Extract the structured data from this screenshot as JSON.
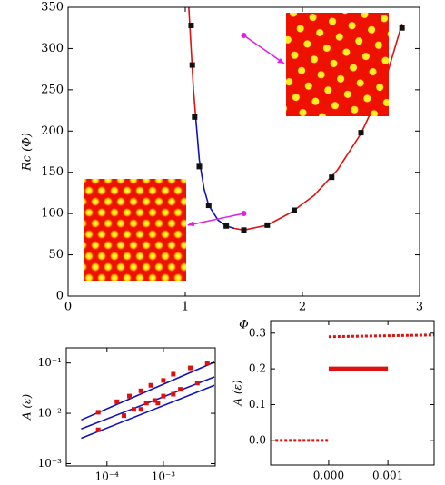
{
  "chart_data": [
    {
      "type": "line",
      "xlabel": "Φ",
      "ylabel": "Rc (Φ)",
      "xlim": [
        0,
        3
      ],
      "ylim": [
        0,
        350
      ],
      "xticks": [
        0,
        1,
        2,
        3
      ],
      "yticks": [
        0,
        50,
        100,
        150,
        200,
        250,
        300,
        350
      ],
      "series": [
        {
          "color": "#dd1111",
          "style": "solid",
          "x": [
            1.03,
            1.05,
            1.07,
            1.09
          ],
          "values": [
            350,
            300,
            250,
            215
          ]
        },
        {
          "color": "#1111bb",
          "style": "solid",
          "x": [
            1.09,
            1.12,
            1.16,
            1.2,
            1.28,
            1.35,
            1.42
          ],
          "values": [
            215,
            165,
            130,
            110,
            92,
            85,
            82
          ]
        },
        {
          "color": "#dd1111",
          "style": "solid",
          "x": [
            1.42,
            1.5,
            1.7,
            1.9,
            2.1,
            2.3,
            2.5,
            2.7,
            2.85
          ],
          "values": [
            82,
            80,
            86,
            101,
            122,
            153,
            197,
            258,
            330
          ]
        },
        {
          "color": "#111111",
          "style": "markers",
          "x": [
            1.05,
            1.06,
            1.08,
            1.12,
            1.2,
            1.35,
            1.5,
            1.7,
            1.93,
            2.25,
            2.5,
            2.85
          ],
          "values": [
            328,
            280,
            217,
            157,
            110,
            85,
            80,
            86,
            104,
            144,
            198,
            325
          ]
        }
      ]
    },
    {
      "type": "line",
      "ylabel": "A (ε)",
      "xlog": true,
      "ylog": true,
      "xlim": [
        1.9e-05,
        0.0083
      ],
      "ylim": [
        0.0009,
        0.2
      ],
      "xticks": [
        {
          "value": 0.0001,
          "label": "10⁻⁴"
        },
        {
          "value": 0.001,
          "label": "10⁻³"
        }
      ],
      "yticks": [
        {
          "value": 0.001,
          "label": "10⁻³"
        },
        {
          "value": 0.01,
          "label": "10⁻²"
        },
        {
          "value": 0.1,
          "label": "10⁻¹"
        }
      ],
      "series": [
        {
          "color": "#1111bb",
          "style": "solid",
          "x": [
            3.5e-05,
            0.008
          ],
          "values": [
            0.0074,
            0.104
          ]
        },
        {
          "color": "#1111bb",
          "style": "solid",
          "x": [
            3.5e-05,
            0.008
          ],
          "values": [
            0.0049,
            0.053
          ]
        },
        {
          "color": "#1111bb",
          "style": "solid",
          "x": [
            3.5e-05,
            0.008
          ],
          "values": [
            0.0032,
            0.036
          ]
        },
        {
          "color": "#dd1111",
          "style": "markers",
          "x": [
            7e-05,
            0.00015,
            0.00025,
            0.0004,
            0.0006,
            0.001,
            0.0015,
            0.003,
            0.006,
            0.0003,
            0.0005,
            0.0007,
            0.001,
            0.002,
            0.004,
            7e-05,
            0.0002,
            0.0004,
            0.0008,
            0.0015
          ],
          "values": [
            0.0105,
            0.017,
            0.022,
            0.028,
            0.036,
            0.045,
            0.06,
            0.08,
            0.1,
            0.012,
            0.016,
            0.018,
            0.022,
            0.03,
            0.04,
            0.0047,
            0.009,
            0.012,
            0.016,
            0.024
          ]
        }
      ]
    },
    {
      "type": "line",
      "ylabel": "A (ε)",
      "xlim": [
        -0.00098,
        0.00178
      ],
      "ylim": [
        -0.069,
        0.335
      ],
      "xticks": [
        {
          "value": 0,
          "label": "0.000"
        },
        {
          "value": 0.001,
          "label": "0.001"
        }
      ],
      "yticks": [
        {
          "value": 0,
          "label": "0.0"
        },
        {
          "value": 0.1,
          "label": "0.1"
        },
        {
          "value": 0.2,
          "label": "0.2"
        },
        {
          "value": 0.3,
          "label": "0.3"
        }
      ],
      "series": [
        {
          "color": "#dd1111",
          "style": "dotted",
          "x": [
            -0.0009,
            0
          ],
          "values": [
            0,
            0
          ]
        },
        {
          "color": "#dd1111",
          "style": "thick",
          "x": [
            0,
            0.001
          ],
          "values": [
            0.2,
            0.2
          ]
        },
        {
          "color": "#dd1111",
          "style": "dotted",
          "x": [
            0,
            0.0018
          ],
          "values": [
            0.29,
            0.295
          ]
        }
      ]
    }
  ]
}
